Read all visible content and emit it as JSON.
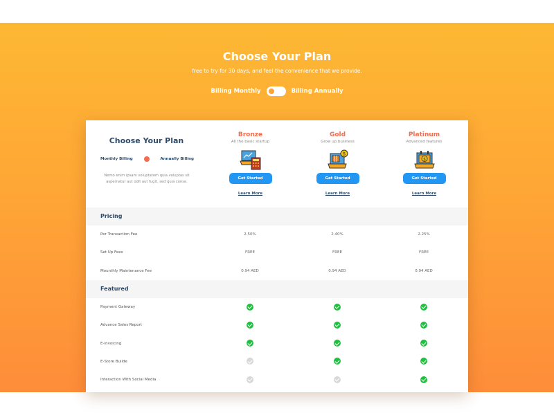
{
  "hero": {
    "title": "Choose Your Plan",
    "subtitle": "free to try for 30 days, and feel the convenience that we provide.",
    "billing_monthly": "Billing Monthly",
    "billing_annually": "Billing Annually",
    "toggle_annual": false
  },
  "intro": {
    "title": "Choose Your Plan",
    "monthly": "Monthly Billing",
    "annually": "Annually Billing",
    "description": "Nemo enim ipsam voluptatem quia voluptas sit aspernatur aut odit aut fugit, sed quia conse."
  },
  "plans": [
    {
      "name": "Bronze",
      "subtitle": "All the basic  startup",
      "icon": "laptop-calculator-icon",
      "button": "Get Started",
      "link": "Learn More"
    },
    {
      "name": "Gold",
      "subtitle": "Grow up  business",
      "icon": "laptop-coin-icon",
      "button": "Get Started",
      "link": "Learn More"
    },
    {
      "name": "Platinum",
      "subtitle": "Advanced features",
      "icon": "laptop-calendar-icon",
      "button": "Get Started",
      "link": "Learn More"
    }
  ],
  "pricing": {
    "title": "Pricing",
    "rows": [
      {
        "label": "Per Transaction Fee",
        "values": [
          "2.50%",
          "2.40%",
          "2.25%"
        ]
      },
      {
        "label": "Set Up Fees",
        "values": [
          "FREE",
          "FREE",
          "FREE"
        ]
      },
      {
        "label": "Mounthly Maintenance Fee",
        "values": [
          "0.94 AED",
          "0.94 AED",
          "0.94 AED"
        ]
      }
    ]
  },
  "featured": {
    "title": "Featured",
    "rows": [
      {
        "label": "Payment Gateway",
        "values": [
          true,
          true,
          true
        ]
      },
      {
        "label": "Advance Sales Report",
        "values": [
          true,
          true,
          true
        ]
      },
      {
        "label": "E-Invoicing",
        "values": [
          true,
          true,
          true
        ]
      },
      {
        "label": "E-Store Builde",
        "values": [
          false,
          true,
          true
        ]
      },
      {
        "label": "Interaction With Social Media",
        "values": [
          false,
          false,
          true
        ]
      }
    ]
  },
  "colors": {
    "accent": "#f26c4f",
    "button": "#2196f3",
    "check_on": "#20c040",
    "check_off": "#d8d8d8",
    "heading": "#2d4a6b"
  }
}
